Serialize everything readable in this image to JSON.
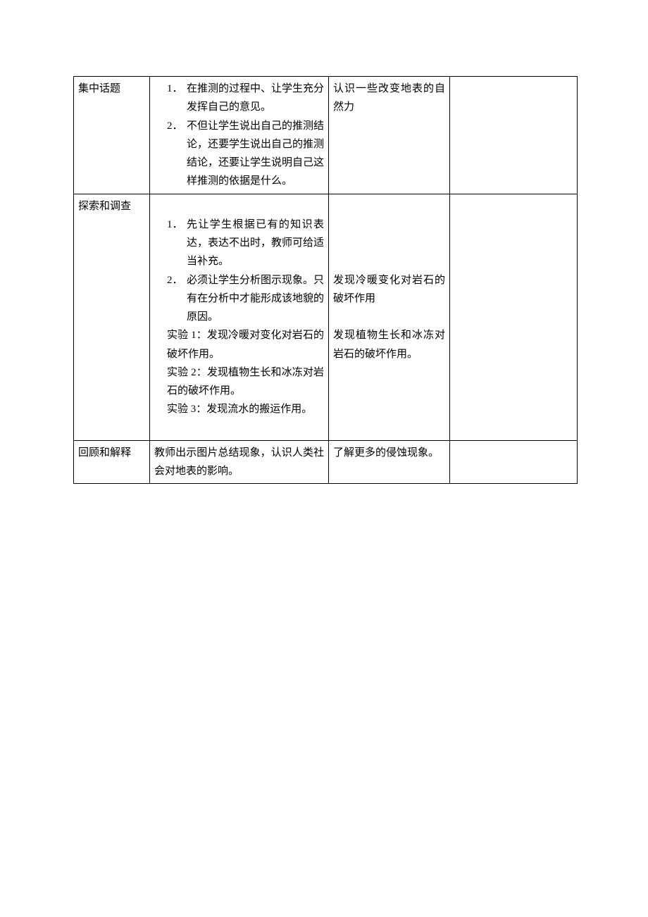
{
  "table": {
    "rows": [
      {
        "col1": "集中话题",
        "col2": {
          "items": [
            {
              "num": "1．",
              "text": "在推测的过程中、让学生充分发挥自己的意见。"
            },
            {
              "num": "2．",
              "text": "不但让学生说出自己的推测结论，还要学生说出自己的推测结论，还要让学生说明自己这样推测的依据是什么。"
            }
          ]
        },
        "col3": "认识一些改变地表的自然力",
        "col4": ""
      },
      {
        "col1": "探索和调查",
        "col2": {
          "items": [
            {
              "num": "1．",
              "text": "先让学生根据已有的知识表达，表达不出时，教师可给适当补充。"
            },
            {
              "num": "2．",
              "text": "必须让学生分析图示现象。只有在分析中才能形成该地貌的原因。"
            }
          ],
          "experiments": [
            "实验 1：发现冷暖对变化对岩石的破坏作用。",
            "实验 2：发现植物生长和冰冻对岩石的破坏作用。",
            "实验 3：发现流水的搬运作用。"
          ]
        },
        "col3": {
          "block1": "发现冷暖变化对岩石的破坏作用",
          "block2": "发现植物生长和冰冻对岩石的破坏作用。"
        },
        "col4": ""
      },
      {
        "col1": "回顾和解释",
        "col2": "教师出示图片总结现象，认识人类社会对地表的影响。",
        "col3": "了解更多的侵蚀现象。",
        "col4": ""
      }
    ]
  }
}
